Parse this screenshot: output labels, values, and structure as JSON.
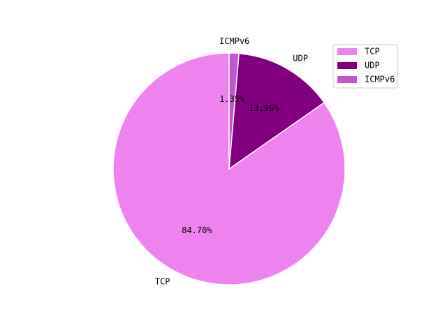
{
  "chart_data": {
    "type": "pie",
    "title": "",
    "slices": [
      {
        "label": "TCP",
        "value": 84.7,
        "pct_label": "84.70%",
        "color": "#ee82ee"
      },
      {
        "label": "UDP",
        "value": 13.96,
        "pct_label": "13.96%",
        "color": "#800080"
      },
      {
        "label": "ICMPv6",
        "value": 1.35,
        "pct_label": "1.35%",
        "color": "#c455d0"
      }
    ],
    "start_angle_deg": 90,
    "direction": "counterclockwise",
    "legend": {
      "placement": "top-right",
      "entries": [
        "TCP",
        "UDP",
        "ICMPv6"
      ]
    },
    "edge_color": "#ffffff"
  }
}
